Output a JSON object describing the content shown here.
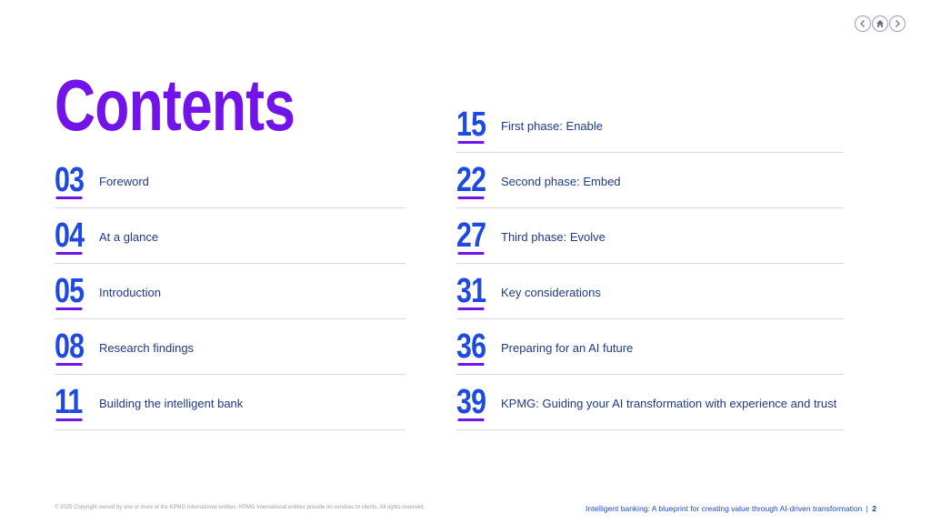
{
  "nav": {
    "prev_icon": "chevron-left-icon",
    "home_icon": "home-icon",
    "next_icon": "chevron-right-icon"
  },
  "title": "Contents",
  "contents": {
    "left": [
      {
        "number": "03",
        "label": "Foreword"
      },
      {
        "number": "04",
        "label": "At a glance"
      },
      {
        "number": "05",
        "label": "Introduction"
      },
      {
        "number": "08",
        "label": "Research findings"
      },
      {
        "number": "11",
        "label": "Building the intelligent bank"
      }
    ],
    "right": [
      {
        "number": "15",
        "label": "First phase: Enable"
      },
      {
        "number": "22",
        "label": "Second phase: Embed"
      },
      {
        "number": "27",
        "label": "Third phase: Evolve"
      },
      {
        "number": "31",
        "label": "Key considerations"
      },
      {
        "number": "36",
        "label": "Preparing for an AI future"
      },
      {
        "number": "39",
        "label": "KPMG: Guiding your AI transformation with experience and trust"
      }
    ]
  },
  "footer": {
    "copyright": "© 2025 Copyright owned by one or more of the KPMG International entities. KPMG International entities provide no services to clients. All rights reserved.",
    "doc_title": "Intelligent banking: A blueprint for creating value through AI-driven transformation",
    "separator": "|",
    "page_number": "2"
  },
  "colors": {
    "title_purple": "#7213ea",
    "number_blue": "#1e49e2",
    "label_navy": "#1e3a8a"
  }
}
